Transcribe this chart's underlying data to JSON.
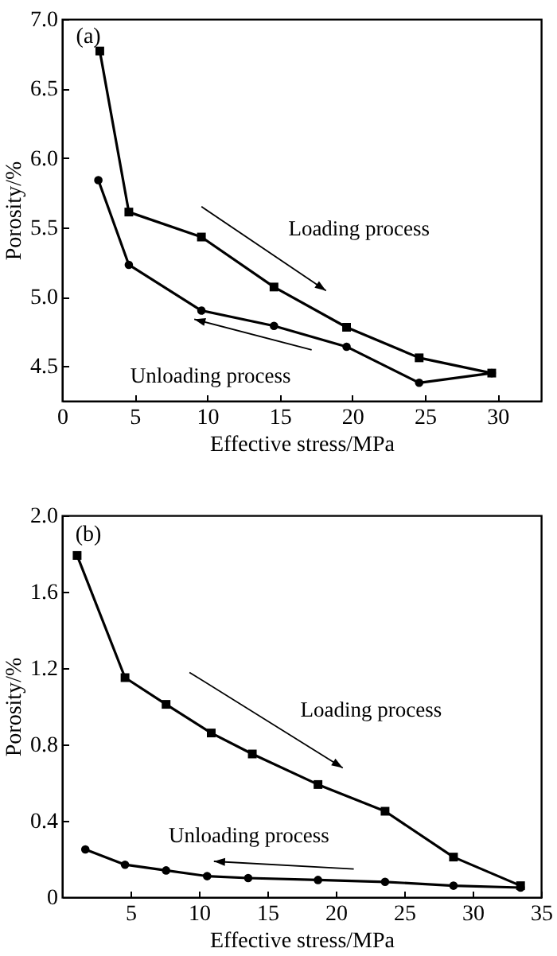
{
  "chart_data": [
    {
      "type": "line",
      "xlabel": "Effective stress/MPa",
      "ylabel": "Porosity/%",
      "annotations": [
        "(a)"
      ],
      "xlim": [
        0,
        33
      ],
      "xticks": [
        0,
        5,
        10,
        15,
        20,
        25,
        30
      ],
      "ylim": [
        4.25,
        7.0
      ],
      "yticks": [
        4.5,
        {
          "value": 5,
          "label": "5.0"
        },
        5.5,
        {
          "value": 6,
          "label": "6.0"
        },
        6.5,
        {
          "value": 7,
          "label": "7.0"
        }
      ],
      "grid": false,
      "legend": false,
      "series": [
        {
          "name": "Loading process",
          "color": "#000000",
          "marker": "square",
          "x": [
            2.6,
            4.6,
            9.6,
            14.6,
            19.6,
            24.6,
            29.6
          ],
          "values": [
            6.77,
            5.61,
            5.43,
            5.07,
            4.78,
            4.56,
            4.45
          ]
        },
        {
          "name": "Unloading process",
          "color": "#000000",
          "marker": "circle",
          "x": [
            2.5,
            4.6,
            9.6,
            14.6,
            19.6,
            24.6,
            29.6
          ],
          "values": [
            5.84,
            5.23,
            4.9,
            4.79,
            4.64,
            4.38,
            4.45
          ]
        }
      ]
    },
    {
      "type": "line",
      "xlabel": "Effective stress/MPa",
      "ylabel": "Porosity/%",
      "annotations": [
        "(b)"
      ],
      "xlim": [
        0,
        35
      ],
      "xticks": [
        5,
        10,
        15,
        20,
        25,
        30,
        35
      ],
      "ylim": [
        0,
        2.0
      ],
      "yticks": [
        0,
        0.4,
        0.8,
        1.2,
        1.6,
        {
          "value": 2,
          "label": "2.0"
        }
      ],
      "grid": false,
      "legend": false,
      "series": [
        {
          "name": "Loading process",
          "color": "#000000",
          "marker": "square",
          "x": [
            1.1,
            4.6,
            7.6,
            10.9,
            13.9,
            18.7,
            23.6,
            28.6,
            33.5
          ],
          "values": [
            1.79,
            1.15,
            1.01,
            0.86,
            0.75,
            0.59,
            0.45,
            0.21,
            0.06
          ]
        },
        {
          "name": "Unloading process",
          "color": "#000000",
          "marker": "circle",
          "x": [
            1.7,
            4.6,
            7.6,
            10.6,
            13.6,
            18.7,
            23.6,
            28.6,
            33.5
          ],
          "values": [
            0.25,
            0.17,
            0.14,
            0.11,
            0.1,
            0.09,
            0.08,
            0.06,
            0.05
          ]
        }
      ]
    }
  ]
}
